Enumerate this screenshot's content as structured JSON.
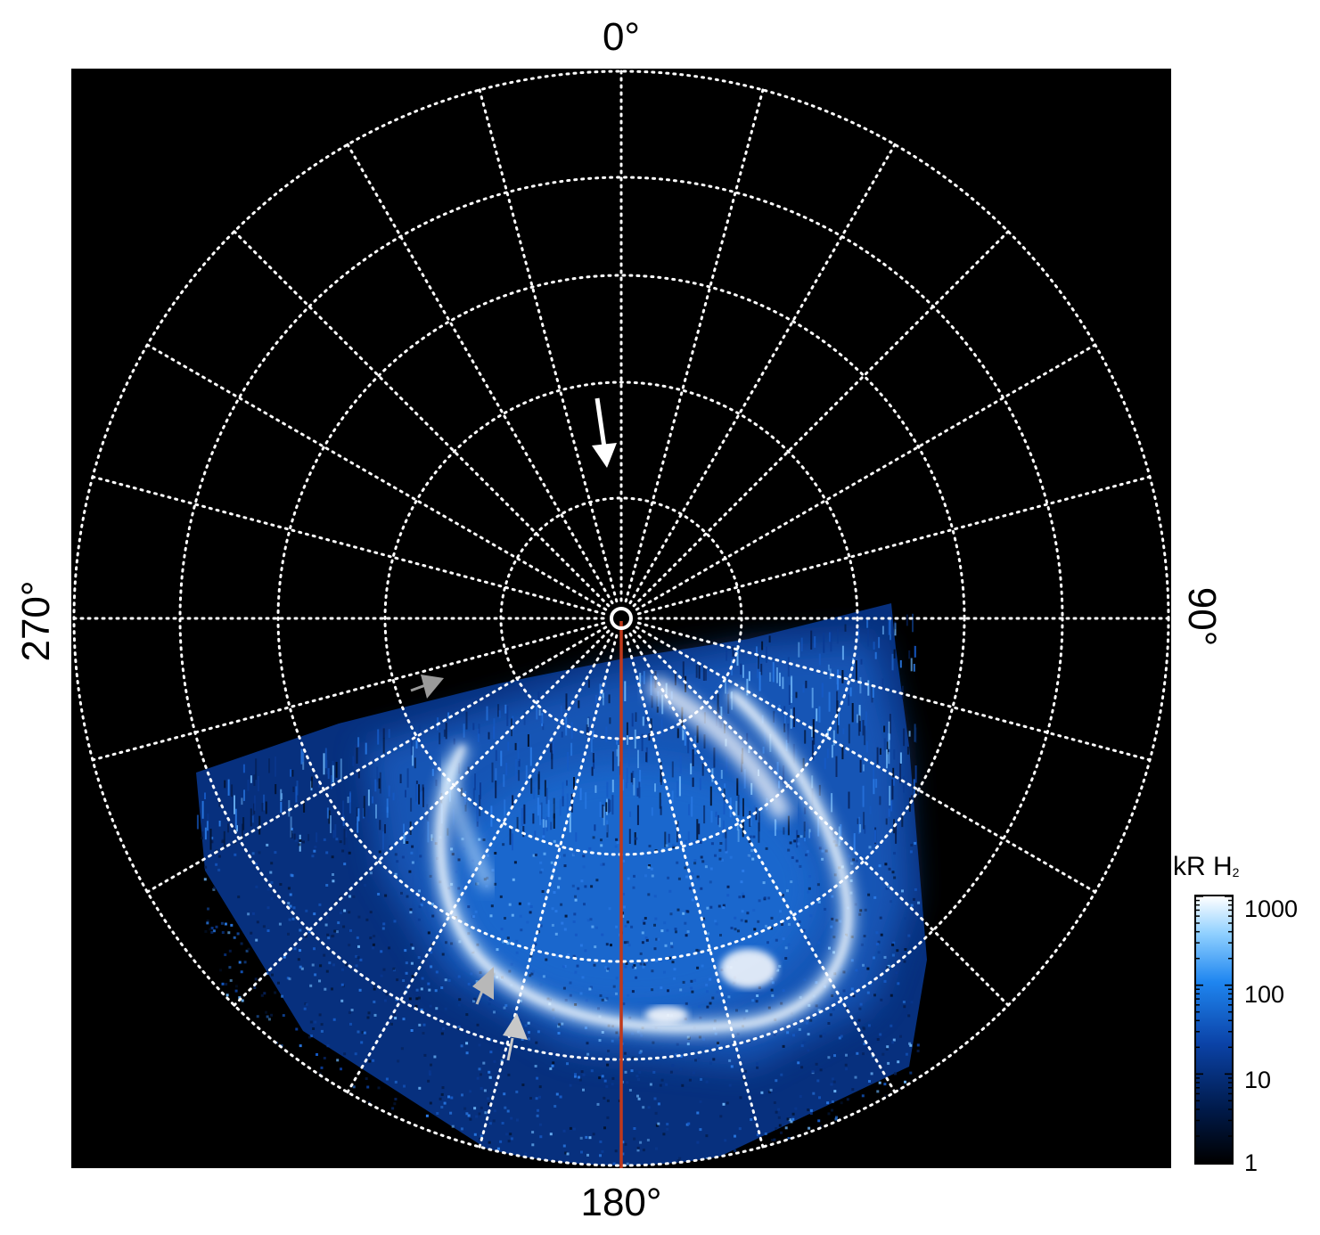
{
  "axis_labels": {
    "top": "0°",
    "right": "90°",
    "bottom": "180°",
    "left": "270°"
  },
  "colorbar": {
    "unit": "kR H",
    "unit_subscript": "2",
    "ticks": [
      "1000",
      "100",
      "10",
      "1"
    ],
    "colors": [
      "#000000",
      "#001a4a",
      "#0b43a8",
      "#1f86f0",
      "#8fd0ff",
      "#ffffff"
    ]
  },
  "colors": {
    "background": "#000000",
    "grid": "#ffffff",
    "meridian_line": "#c0391b",
    "arrow_white": "#ffffff",
    "arrow_gray": "#b0b0b0"
  }
}
